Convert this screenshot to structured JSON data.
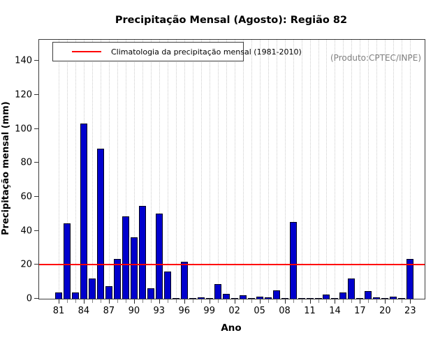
{
  "chart_data": {
    "type": "bar",
    "title": "Precipitação Mensal (Agosto): Região 82",
    "xlabel": "Ano",
    "ylabel": "Precipitação mensal (mm)",
    "annotation": "(Produto:CPTEC/INPE)",
    "categories": [
      "81",
      "82",
      "83",
      "84",
      "85",
      "86",
      "87",
      "88",
      "89",
      "90",
      "91",
      "92",
      "93",
      "94",
      "95",
      "96",
      "97",
      "98",
      "99",
      "00",
      "01",
      "02",
      "03",
      "04",
      "05",
      "06",
      "07",
      "08",
      "09",
      "10",
      "11",
      "12",
      "13",
      "14",
      "15",
      "16",
      "17",
      "18",
      "19",
      "20",
      "21",
      "22",
      "23"
    ],
    "values": [
      3.8,
      44.5,
      3.8,
      103,
      12,
      88.5,
      7.3,
      23.4,
      48.5,
      36,
      54.5,
      6,
      50,
      16,
      0.2,
      21.8,
      0.2,
      1,
      0.2,
      8.7,
      3,
      0.3,
      2.2,
      0.3,
      1.2,
      0.8,
      4.8,
      0.2,
      45.3,
      0.2,
      0.3,
      0.2,
      2.5,
      0.3,
      3.9,
      11.9,
      0.2,
      4.5,
      0.7,
      0.5,
      1.1,
      0.1,
      23.3
    ],
    "xtick_labels": [
      "81",
      "84",
      "87",
      "90",
      "93",
      "96",
      "99",
      "02",
      "05",
      "08",
      "11",
      "14",
      "17",
      "20",
      "23"
    ],
    "yticks": [
      0,
      20,
      40,
      60,
      80,
      100,
      120,
      140
    ],
    "ylim": [
      0,
      152.4
    ],
    "climatology": {
      "label": "Climatologia da precipitação mensal (1981-2010)",
      "value": 20,
      "line_color": "#FF0000"
    },
    "bar_color": "#0000CD",
    "bar_border_color": "#000000",
    "grid": "vertical-dotted",
    "legend_position": "top-left"
  }
}
